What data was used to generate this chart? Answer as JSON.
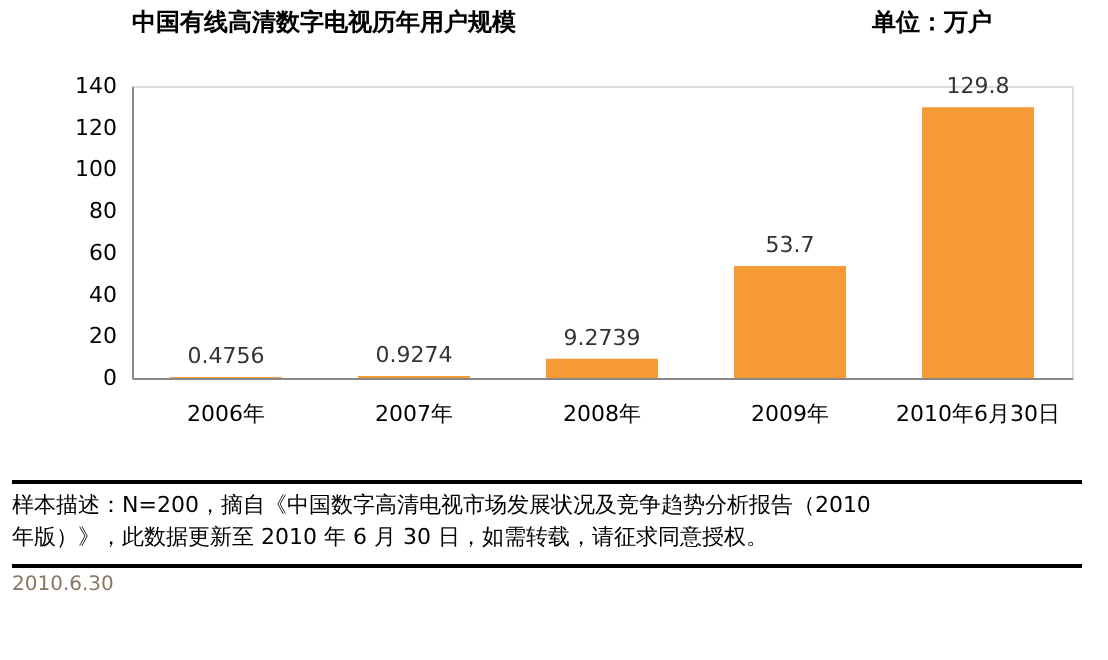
{
  "chart_data": {
    "type": "bar",
    "title": "中国有线高清数字电视历年用户规模",
    "categories": [
      "2006年",
      "2007年",
      "2008年",
      "2009年",
      "2010年6月30日"
    ],
    "values": [
      0.4756,
      0.9274,
      9.2739,
      53.7,
      129.8
    ],
    "color": "#f59a36",
    "ylim": [
      0,
      140
    ],
    "yticks": [
      0,
      20,
      40,
      60,
      80,
      100,
      120,
      140
    ],
    "grid": false,
    "data_labels": true,
    "annotations": [
      "单位：万户",
      "样本描述：N=200，摘自《中国数字高清电视市场发展状况及竞争趋势分析报告（2010\n年版）》，此数据更新至 2010 年 6 月 30 日，如需转载，请征求同意授权。",
      "2010.6.30"
    ]
  }
}
